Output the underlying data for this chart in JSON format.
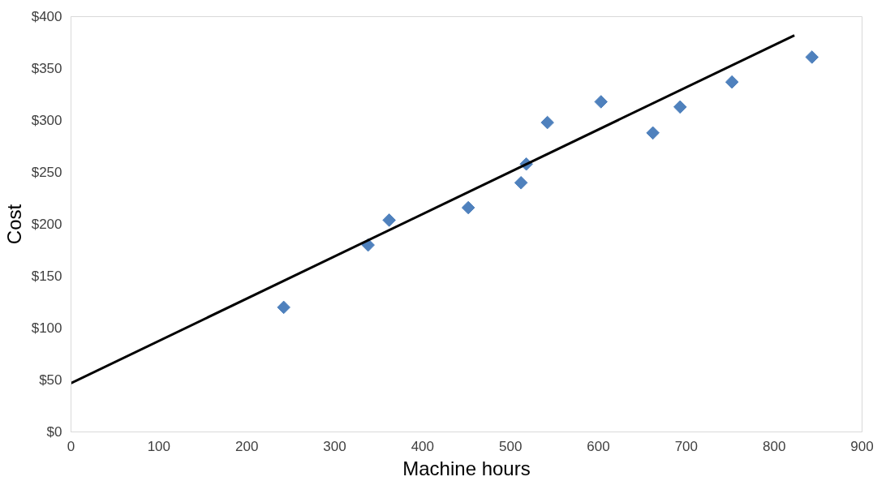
{
  "chart_data": {
    "type": "scatter",
    "xlabel": "Machine hours",
    "ylabel": "Cost",
    "xlim": [
      0,
      900
    ],
    "xticks": [
      0,
      100,
      200,
      300,
      400,
      500,
      600,
      700,
      800,
      900
    ],
    "ylim": [
      0,
      400
    ],
    "yticks": [
      {
        "value": 0,
        "label": "$0"
      },
      {
        "value": 50,
        "label": "$50"
      },
      {
        "value": 100,
        "label": "$100"
      },
      {
        "value": 150,
        "label": "$150"
      },
      {
        "value": 200,
        "label": "$200"
      },
      {
        "value": 250,
        "label": "$250"
      },
      {
        "value": 300,
        "label": "$300"
      },
      {
        "value": 350,
        "label": "$350"
      },
      {
        "value": 400,
        "label": "$400"
      }
    ],
    "grid": false,
    "marker": "diamond",
    "series": [
      {
        "color": "#4f81bd",
        "x": [
          242,
          338,
          362,
          452,
          512,
          518,
          542,
          603,
          662,
          693,
          752,
          843
        ],
        "values": [
          120,
          180,
          204,
          216,
          240,
          258,
          298,
          318,
          288,
          313,
          337,
          361
        ]
      },
      {
        "type": "line",
        "color": "#000000",
        "line_style": "solid",
        "marker": "none",
        "x": [
          0,
          823
        ],
        "values": [
          47,
          382
        ]
      }
    ]
  }
}
